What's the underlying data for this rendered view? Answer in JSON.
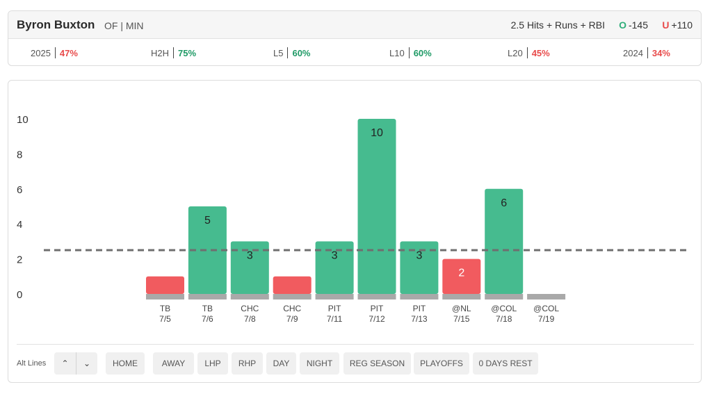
{
  "header": {
    "player_name": "Byron Buxton",
    "player_meta": "OF | MIN",
    "prop": "2.5 Hits + Runs + RBI",
    "over_tag": "O",
    "over_odds": "-145",
    "under_tag": "U",
    "under_odds": "+110"
  },
  "stats": [
    {
      "label": "2025",
      "value": "47%",
      "status": "red"
    },
    {
      "label": "H2H",
      "value": "75%",
      "status": "green"
    },
    {
      "label": "L5",
      "value": "60%",
      "status": "green"
    },
    {
      "label": "L10",
      "value": "60%",
      "status": "green"
    },
    {
      "label": "L20",
      "value": "45%",
      "status": "red"
    },
    {
      "label": "2024",
      "value": "34%",
      "status": "red"
    }
  ],
  "colors": {
    "over": "#46bb8f",
    "under": "#f15b5f",
    "base": "#a9a9a9",
    "line": "#6f6f6f"
  },
  "chart_data": {
    "type": "bar",
    "title": "",
    "xlabel": "",
    "ylabel": "",
    "ylim": [
      0,
      10
    ],
    "yticks": [
      0,
      2,
      4,
      6,
      8,
      10
    ],
    "line_value": 2.5,
    "categories": [
      {
        "opp": "TB",
        "date": "7/5"
      },
      {
        "opp": "TB",
        "date": "7/6"
      },
      {
        "opp": "CHC",
        "date": "7/8"
      },
      {
        "opp": "CHC",
        "date": "7/9"
      },
      {
        "opp": "PIT",
        "date": "7/11"
      },
      {
        "opp": "PIT",
        "date": "7/12"
      },
      {
        "opp": "PIT",
        "date": "7/13"
      },
      {
        "opp": "@NL",
        "date": "7/15"
      },
      {
        "opp": "@COL",
        "date": "7/18"
      },
      {
        "opp": "@COL",
        "date": "7/19"
      }
    ],
    "values": [
      1,
      5,
      3,
      1,
      3,
      10,
      3,
      2,
      6,
      0
    ],
    "value_labels": [
      "",
      "5",
      "3",
      "",
      "3",
      "10",
      "3",
      "2",
      "6",
      ""
    ]
  },
  "controls": {
    "alt_lines_label": "Alt Lines",
    "up_icon": "⌃",
    "down_icon": "⌄",
    "filters": [
      "HOME",
      "AWAY",
      "LHP",
      "RHP",
      "DAY",
      "NIGHT",
      "REG SEASON",
      "PLAYOFFS",
      "0 DAYS REST"
    ]
  }
}
